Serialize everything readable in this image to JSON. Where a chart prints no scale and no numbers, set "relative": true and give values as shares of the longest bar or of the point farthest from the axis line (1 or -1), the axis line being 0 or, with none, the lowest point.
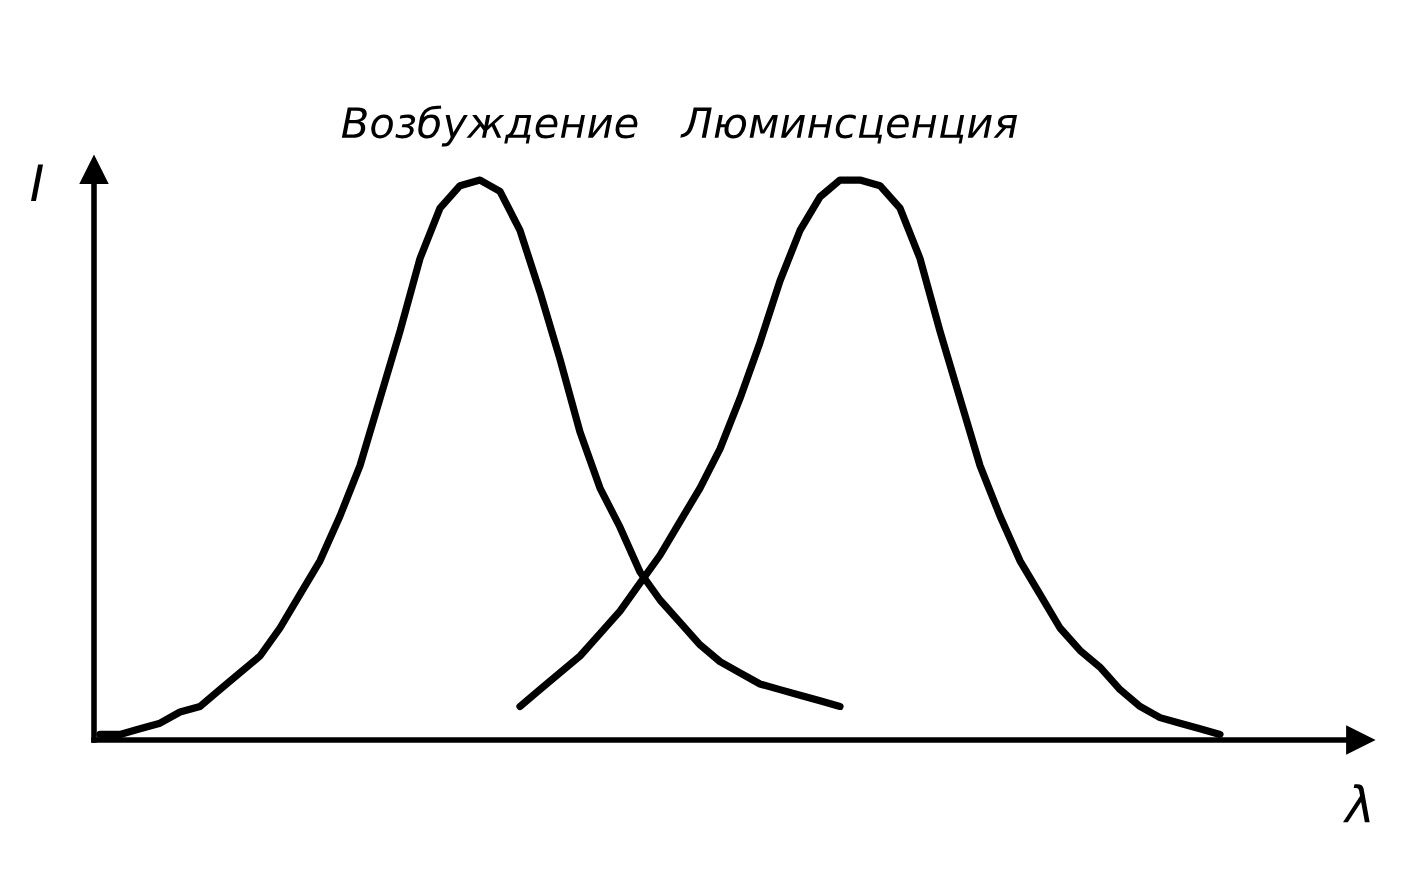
{
  "chart_data": {
    "type": "line",
    "relative": true,
    "xlabel": "λ",
    "ylabel": "I",
    "legend": false,
    "marker": "none",
    "line_style": "solid",
    "categories": [
      null,
      null,
      null,
      null,
      null,
      null,
      null,
      null,
      null,
      null,
      null,
      null,
      null,
      null,
      null,
      null,
      null,
      null,
      null,
      null,
      null,
      null,
      null,
      null,
      null,
      null,
      null,
      null,
      null,
      null,
      null,
      null,
      null,
      null,
      null,
      null,
      null,
      null,
      null,
      null,
      null,
      null,
      null,
      null,
      null,
      null,
      null,
      null,
      null,
      null,
      null,
      null,
      null,
      null,
      null,
      null,
      null,
      null,
      null,
      null,
      null,
      null,
      null,
      null
    ],
    "series": [
      {
        "name": "Возбуждение",
        "color": "#000000",
        "values": [
          0.01,
          0.01,
          0.02,
          0.03,
          0.05,
          0.06,
          0.09,
          0.12,
          0.15,
          0.2,
          0.26,
          0.32,
          0.4,
          0.49,
          0.61,
          0.73,
          0.86,
          0.95,
          0.99,
          1.0,
          0.98,
          0.91,
          0.8,
          0.68,
          0.55,
          0.45,
          0.38,
          0.3,
          0.25,
          0.21,
          0.17,
          0.14,
          0.12,
          0.1,
          0.09,
          0.08,
          0.07,
          0.06,
          null,
          null,
          null,
          null,
          null,
          null,
          null,
          null,
          null,
          null,
          null,
          null,
          null,
          null,
          null,
          null,
          null,
          null,
          null,
          null,
          null,
          null,
          null,
          null,
          null,
          null
        ]
      },
      {
        "name": "Люминсценция",
        "color": "#000000",
        "values": [
          null,
          null,
          null,
          null,
          null,
          null,
          null,
          null,
          null,
          null,
          null,
          null,
          null,
          null,
          null,
          null,
          null,
          null,
          null,
          null,
          null,
          0.06,
          0.09,
          0.12,
          0.15,
          0.19,
          0.23,
          0.28,
          0.33,
          0.39,
          0.45,
          0.52,
          0.61,
          0.71,
          0.82,
          0.91,
          0.97,
          1.0,
          1.0,
          0.99,
          0.95,
          0.86,
          0.73,
          0.61,
          0.49,
          0.4,
          0.32,
          0.26,
          0.2,
          0.16,
          0.13,
          0.09,
          0.06,
          0.04,
          0.03,
          0.02,
          0.01,
          null,
          null,
          null,
          null,
          null,
          null,
          null
        ]
      }
    ]
  }
}
